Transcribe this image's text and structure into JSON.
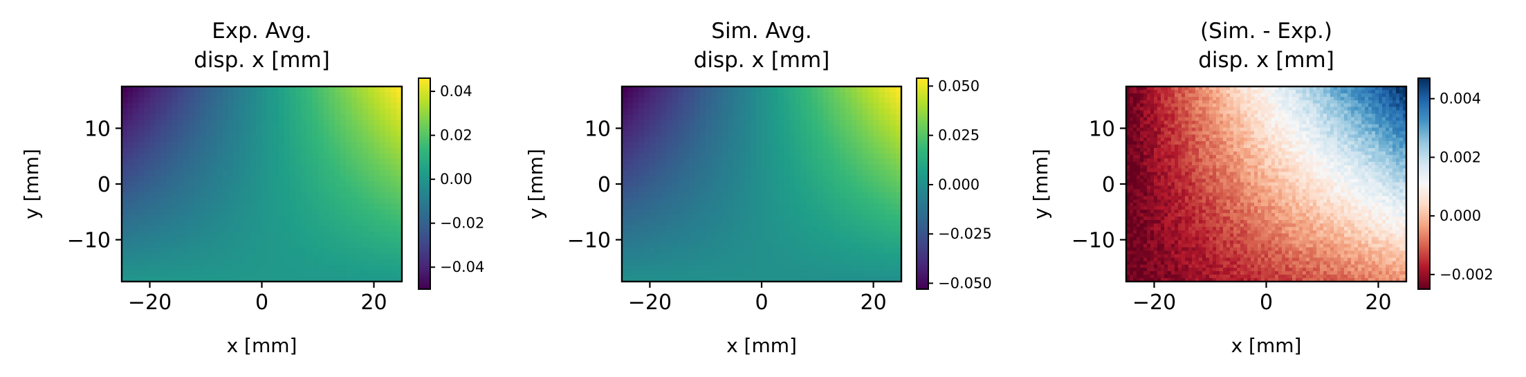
{
  "chart_data": [
    {
      "type": "heatmap",
      "title_line1": "Exp. Avg.",
      "title_line2": "disp. x [mm]",
      "xlabel": "x [mm]",
      "ylabel": "y [mm]",
      "xlim": [
        -25,
        25
      ],
      "ylim": [
        -17.5,
        17.5
      ],
      "x_ticks": [
        -20,
        0,
        20
      ],
      "x_tick_labels": [
        "−20",
        "0",
        "20"
      ],
      "y_ticks": [
        10,
        0,
        -10
      ],
      "y_tick_labels": [
        "10",
        "0",
        "−10"
      ],
      "colormap": "viridis",
      "clim": [
        -0.05,
        0.046
      ],
      "field": {
        "top_left": -0.05,
        "top_right": 0.046,
        "bottom_left": 0.0,
        "bottom_right": 0.002
      },
      "noise": 0,
      "colorbar_ticks": [
        0.04,
        0.02,
        0.0,
        -0.02,
        -0.04
      ],
      "colorbar_labels": [
        "0.04",
        "0.02",
        "0.00",
        "−0.02",
        "−0.04"
      ]
    },
    {
      "type": "heatmap",
      "title_line1": "Sim. Avg.",
      "title_line2": "disp. x [mm]",
      "xlabel": "x [mm]",
      "ylabel": "y [mm]",
      "xlim": [
        -25,
        25
      ],
      "ylim": [
        -17.5,
        17.5
      ],
      "x_ticks": [
        -20,
        0,
        20
      ],
      "x_tick_labels": [
        "−20",
        "0",
        "20"
      ],
      "y_ticks": [
        10,
        0,
        -10
      ],
      "y_tick_labels": [
        "10",
        "0",
        "−10"
      ],
      "colormap": "viridis",
      "clim": [
        -0.053,
        0.054
      ],
      "field": {
        "top_left": -0.053,
        "top_right": 0.054,
        "bottom_left": 0.0,
        "bottom_right": 0.001
      },
      "noise": 0,
      "colorbar_ticks": [
        0.05,
        0.025,
        0.0,
        -0.025,
        -0.05
      ],
      "colorbar_labels": [
        "0.050",
        "0.025",
        "0.000",
        "−0.025",
        "−0.050"
      ]
    },
    {
      "type": "heatmap",
      "title_line1": "(Sim. - Exp.)",
      "title_line2": "disp. x [mm]",
      "xlabel": "x [mm]",
      "ylabel": "y [mm]",
      "xlim": [
        -25,
        25
      ],
      "ylim": [
        -17.5,
        17.5
      ],
      "x_ticks": [
        -20,
        0,
        20
      ],
      "x_tick_labels": [
        "−20",
        "0",
        "20"
      ],
      "y_ticks": [
        10,
        0,
        -10
      ],
      "y_tick_labels": [
        "10",
        "0",
        "−10"
      ],
      "colormap": "RdBu",
      "clim": [
        -0.0025,
        0.0047
      ],
      "field": {
        "top_left": -0.0025,
        "top_right": 0.0047,
        "bottom_left": -0.0025,
        "bottom_right": -0.0005
      },
      "noise": 0.0003,
      "colorbar_ticks": [
        0.004,
        0.002,
        0.0,
        -0.002
      ],
      "colorbar_labels": [
        "0.004",
        "0.002",
        "0.000",
        "−0.002"
      ]
    }
  ]
}
